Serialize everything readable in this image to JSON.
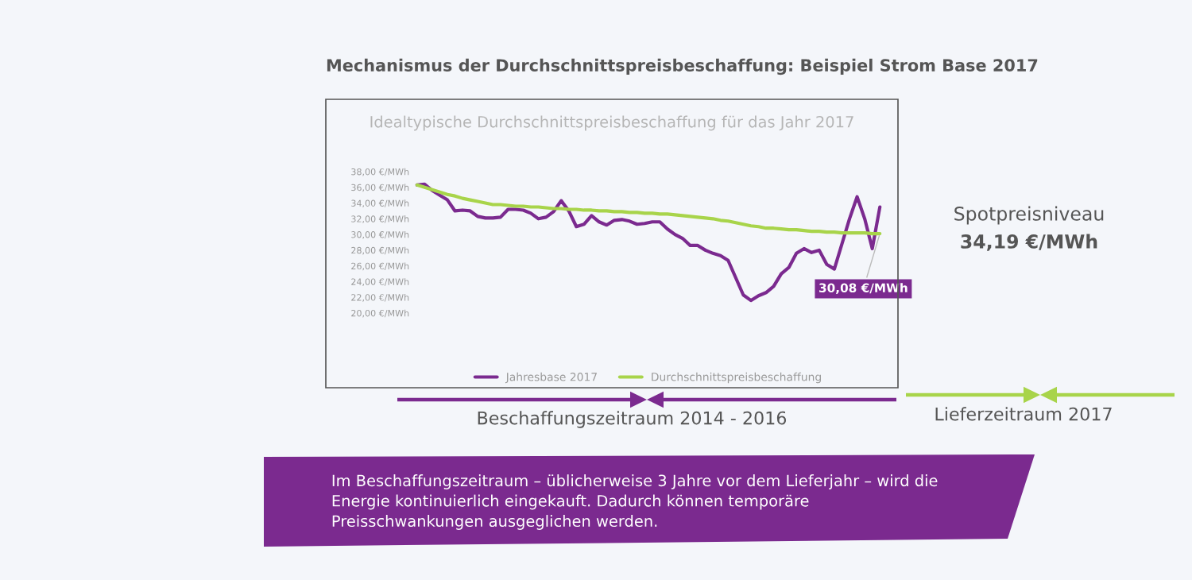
{
  "chart_data": {
    "type": "line",
    "title": "Mechanismus der Durchschnittspreisbeschaffung: Beispiel Strom Base 2017",
    "subtitle": "Idealtypische Durchschnittspreisbeschaffung für das Jahr 2017",
    "categories": [
      null,
      null,
      null,
      null,
      null,
      null,
      null,
      null,
      null,
      null,
      null,
      null,
      null,
      null,
      null,
      null,
      null,
      null,
      null,
      null,
      null,
      null,
      null,
      null,
      null,
      null,
      null,
      null,
      null,
      null,
      null,
      null,
      null,
      null,
      null,
      null,
      null,
      null,
      null,
      null,
      null,
      null,
      null,
      null,
      null,
      null,
      null,
      null,
      null,
      null,
      null,
      null,
      null,
      null,
      null,
      null,
      null,
      null,
      null,
      null,
      null,
      null
    ],
    "series": [
      {
        "name": "Jahresbase 2017",
        "color": "#7b2a8f",
        "values": [
          36.3,
          36.4,
          35.6,
          35.0,
          34.4,
          33.0,
          33.1,
          33.0,
          32.3,
          32.1,
          32.1,
          32.2,
          33.2,
          33.2,
          33.1,
          32.7,
          32.0,
          32.2,
          32.9,
          34.3,
          33.0,
          31.0,
          31.3,
          32.4,
          31.6,
          31.2,
          31.8,
          31.9,
          31.7,
          31.3,
          31.4,
          31.6,
          31.6,
          30.7,
          30.0,
          29.5,
          28.6,
          28.6,
          28.0,
          27.6,
          27.3,
          26.7,
          24.5,
          22.3,
          21.6,
          22.2,
          22.6,
          23.4,
          25.0,
          25.8,
          27.6,
          28.2,
          27.7,
          28.0,
          26.2,
          25.6,
          28.8,
          32.0,
          34.8,
          32.0,
          28.2,
          33.5
        ]
      },
      {
        "name": "Durchschnittspreisbeschaffung",
        "color": "#a8d44a",
        "values": [
          36.3,
          36.0,
          35.7,
          35.4,
          35.1,
          34.9,
          34.6,
          34.4,
          34.2,
          34.0,
          33.8,
          33.8,
          33.7,
          33.6,
          33.6,
          33.5,
          33.5,
          33.4,
          33.3,
          33.3,
          33.2,
          33.2,
          33.1,
          33.1,
          33.0,
          33.0,
          32.9,
          32.9,
          32.8,
          32.8,
          32.7,
          32.7,
          32.6,
          32.6,
          32.5,
          32.4,
          32.3,
          32.2,
          32.1,
          32.0,
          31.8,
          31.7,
          31.5,
          31.3,
          31.1,
          31.0,
          30.8,
          30.8,
          30.7,
          30.6,
          30.6,
          30.5,
          30.4,
          30.4,
          30.3,
          30.3,
          30.2,
          30.2,
          30.2,
          30.2,
          30.1,
          30.1
        ]
      }
    ],
    "ylim": [
      20,
      38
    ],
    "yticks": [
      {
        "value": 20,
        "label": "20,00 €/MWh"
      },
      {
        "value": 22,
        "label": "22,00 €/MWh"
      },
      {
        "value": 24,
        "label": "24,00 €/MWh"
      },
      {
        "value": 26,
        "label": "26,00 €/MWh"
      },
      {
        "value": 28,
        "label": "28,00 €/MWh"
      },
      {
        "value": 30,
        "label": "30,00 €/MWh"
      },
      {
        "value": 32,
        "label": "32,00 €/MWh"
      },
      {
        "value": 34,
        "label": "34,00 €/MWh"
      },
      {
        "value": 36,
        "label": "36,00 €/MWh"
      },
      {
        "value": 38,
        "label": "38,00 €/MWh"
      }
    ],
    "tick_labels": "y",
    "grid": false,
    "legend": "bottom",
    "marker": "none",
    "line_style": "solid",
    "annotations": [
      "Spotpreisniveau",
      "34,19 €/MWh",
      "Beschaffungszeitraum 2014 - 2016",
      "Lieferzeitraum 2017",
      "Im Beschaffungszeitraum – üblicherweise 3 Jahre vor dem Lieferjahr – wird die Energie kontinuierlich eingekauft. Dadurch können temporäre Preisschwankungen ausgeglichen werden.",
      "30,08 €/MWh"
    ]
  }
}
